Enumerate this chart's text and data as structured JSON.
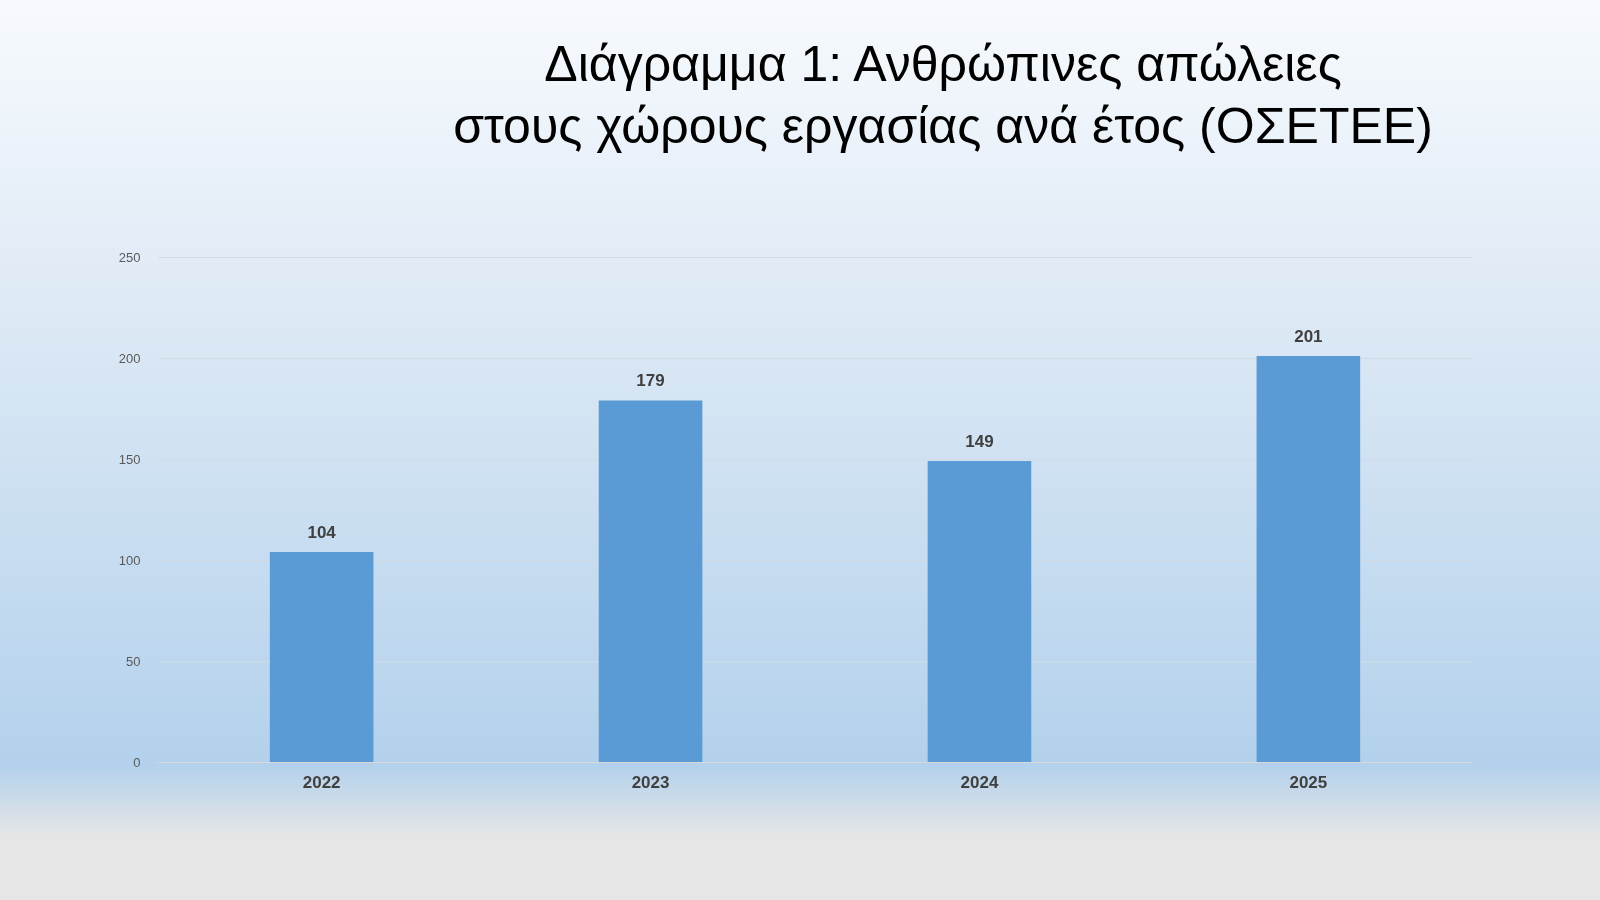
{
  "chart_data": {
    "type": "bar",
    "title": "Διάγραμμα 1: Ανθρώπινες απώλειες στους χώρους εργασίας ανά έτος (ΟΣΕΤΕΕ)",
    "categories": [
      "2022",
      "2023",
      "2024",
      "2025"
    ],
    "values": [
      104,
      179,
      149,
      201
    ],
    "color": "#5b9bd5",
    "ylim": [
      0,
      250
    ],
    "yticks": [
      0,
      50,
      100,
      150,
      200,
      250
    ],
    "grid": "y",
    "data_labels": true
  }
}
